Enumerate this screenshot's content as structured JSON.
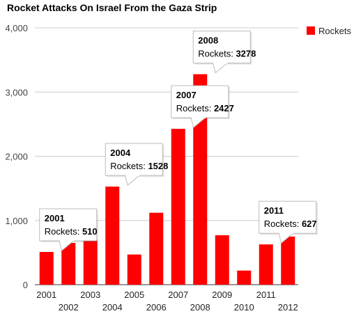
{
  "chart_data": {
    "type": "bar",
    "title": "Rocket Attacks On Israel From the Gaza Strip",
    "categories": [
      "2001",
      "2002",
      "2003",
      "2004",
      "2005",
      "2006",
      "2007",
      "2008",
      "2009",
      "2010",
      "2011",
      "2012"
    ],
    "series": [
      {
        "name": "Rockets",
        "color": "#ff0000",
        "values": [
          510,
          650,
          700,
          1528,
          470,
          1120,
          2427,
          3278,
          770,
          220,
          627,
          750
        ]
      }
    ],
    "ylim": [
      0,
      4000
    ],
    "yticks": [
      "0",
      "1,000",
      "2,000",
      "3,000",
      "4,000"
    ],
    "ytick_values": [
      0,
      1000,
      2000,
      3000,
      4000
    ],
    "grid": true,
    "legend_position": "top-right",
    "value_label": "Rockets",
    "tooltips": [
      {
        "category": "2001",
        "value": "510"
      },
      {
        "category": "2004",
        "value": "1528"
      },
      {
        "category": "2007",
        "value": "2427"
      },
      {
        "category": "2008",
        "value": "3278"
      },
      {
        "category": "2011",
        "value": "627"
      }
    ]
  }
}
